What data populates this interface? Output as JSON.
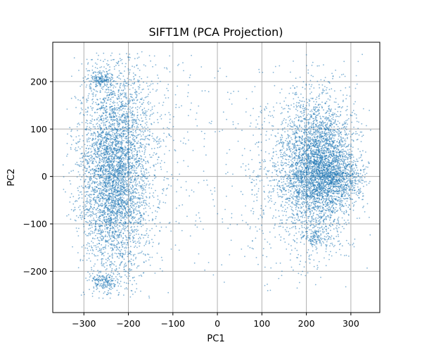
{
  "chart_data": {
    "type": "scatter",
    "title": "SIFT1M (PCA Projection)",
    "xlabel": "PC1",
    "ylabel": "PC2",
    "xlim": [
      -370,
      365
    ],
    "ylim": [
      -287,
      283
    ],
    "xticks": [
      -300,
      -200,
      -100,
      0,
      100,
      200,
      300
    ],
    "yticks": [
      -200,
      -100,
      0,
      100,
      200
    ],
    "grid": true,
    "color": "#1f77b4",
    "point_alpha": 0.55,
    "series": [
      {
        "clusters": [
          {
            "center": [
              -235,
              0
            ],
            "spread": [
              38,
              112
            ],
            "count": 3900
          },
          {
            "center": [
              -260,
              205
            ],
            "spread": [
              14,
              8
            ],
            "count": 160
          },
          {
            "center": [
              -255,
              -222
            ],
            "spread": [
              14,
              10
            ],
            "count": 160
          },
          {
            "center": [
              -190,
              60
            ],
            "spread": [
              45,
              100
            ],
            "count": 700
          },
          {
            "center": [
              225,
              20
            ],
            "spread": [
              42,
              72
            ],
            "count": 3700
          },
          {
            "center": [
              270,
              0
            ],
            "spread": [
              35,
              25
            ],
            "count": 600
          },
          {
            "center": [
              225,
              -130
            ],
            "spread": [
              20,
              10
            ],
            "count": 120
          },
          {
            "center": [
              150,
              0
            ],
            "spread": [
              55,
              110
            ],
            "count": 450
          },
          {
            "center": [
              -60,
              30
            ],
            "spread": [
              110,
              150
            ],
            "count": 220
          }
        ]
      }
    ]
  }
}
